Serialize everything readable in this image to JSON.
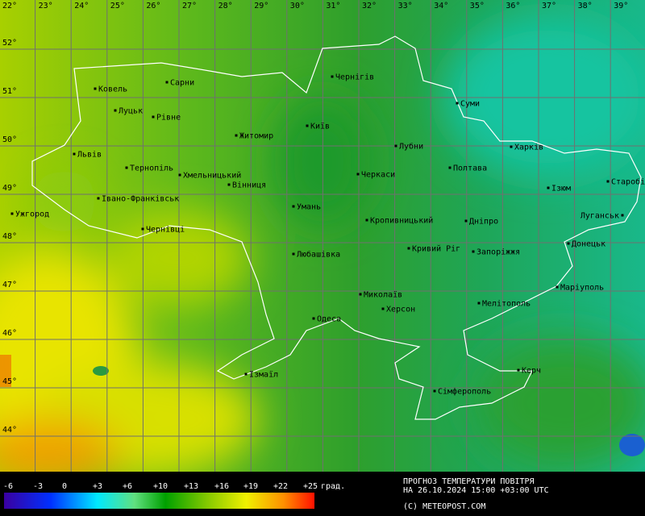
{
  "map": {
    "lon_labels": [
      "22°",
      "23°",
      "24°",
      "25°",
      "26°",
      "27°",
      "28°",
      "29°",
      "30°",
      "31°",
      "32°",
      "33°",
      "34°",
      "35°",
      "36°",
      "37°",
      "38°",
      "39°"
    ],
    "lat_labels": [
      "52°",
      "51°",
      "50°",
      "49°",
      "48°",
      "47°",
      "46°",
      "45°",
      "44°"
    ],
    "cities": [
      "Ковель",
      "Сарни",
      "Чернігів",
      "Луцьк",
      "Рівне",
      "Суми",
      "Житомир",
      "Київ",
      "Львів",
      "Лубни",
      "Харків",
      "Тернопіль",
      "Хмельницький",
      "Вінниця",
      "Черкаси",
      "Полтава",
      "Старобі",
      "Ізюм",
      "Івано-Франківськ",
      "Ужгород",
      "Умань",
      "Кропивницький",
      "Дніпро",
      "Луганськ",
      "Чернівці",
      "Донецьк",
      "Кривий Ріг",
      "Запоріжжя",
      "Любашівка",
      "Миколаїв",
      "Маріуполь",
      "Херсон",
      "Мелітополь",
      "Одеса",
      "Керч",
      "Ізмаїл",
      "Сімферополь"
    ]
  },
  "legend": {
    "labels": [
      "-6",
      "-3",
      "0",
      "+3",
      "+6",
      "+10",
      "+13",
      "+16",
      "+19",
      "+22",
      "+25"
    ],
    "unit": "град."
  },
  "caption": {
    "title": "ПРОГНОЗ ТЕМПЕРАТУРИ ПОВІТРЯ",
    "time": "НА 26.10.2024 15:00 +03:00 UTC",
    "copyright": "(C) METEOPOST.COM"
  }
}
